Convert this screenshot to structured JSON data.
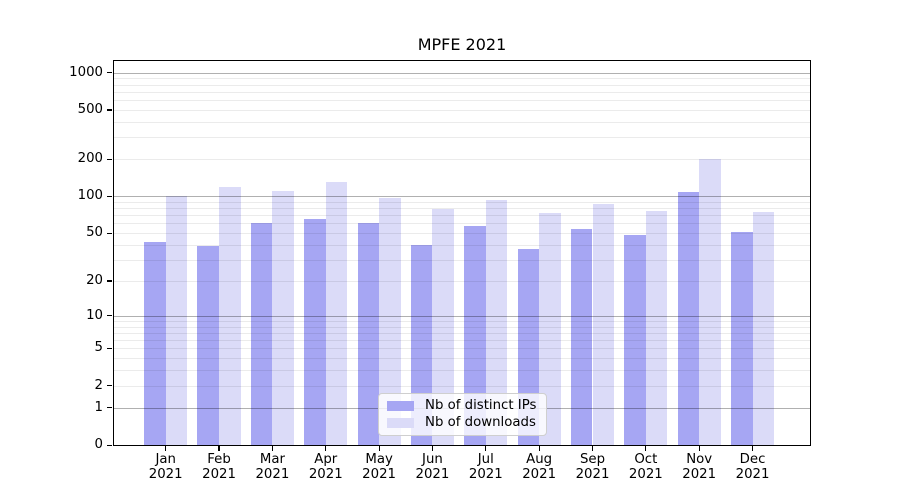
{
  "figure": {
    "background": "#ffffff"
  },
  "chart_data": {
    "type": "bar",
    "title": "MPFE 2021",
    "categories": [
      "Jan",
      "Feb",
      "Mar",
      "Apr",
      "May",
      "Jun",
      "Jul",
      "Aug",
      "Sep",
      "Oct",
      "Nov",
      "Dec"
    ],
    "category_sublabel": "2021",
    "series": [
      {
        "name": "Nb of distinct IPs",
        "color": "#a6a6f3",
        "values": [
          42,
          39,
          61,
          65,
          61,
          40,
          57,
          37,
          54,
          48,
          108,
          51
        ]
      },
      {
        "name": "Nb of downloads",
        "color": "#dbdbf8",
        "values": [
          100,
          119,
          111,
          131,
          97,
          79,
          93,
          73,
          87,
          76,
          200,
          75
        ]
      }
    ],
    "yscale": "symlog",
    "y_ticks": [
      0,
      1,
      2,
      5,
      10,
      20,
      50,
      100,
      200,
      500,
      1000
    ],
    "ylim": [
      0,
      1265
    ],
    "xlabel": "",
    "ylabel": "",
    "grid": true,
    "legend_position": "lower center"
  },
  "colors": {
    "grid_major": "rgba(0,0,0,0.31)",
    "grid_minor": "rgba(0,0,0,0.08)",
    "spine": "#000000",
    "text": "#000000",
    "series_dark": "#a6a6f3",
    "series_light": "#dbdbf8"
  }
}
